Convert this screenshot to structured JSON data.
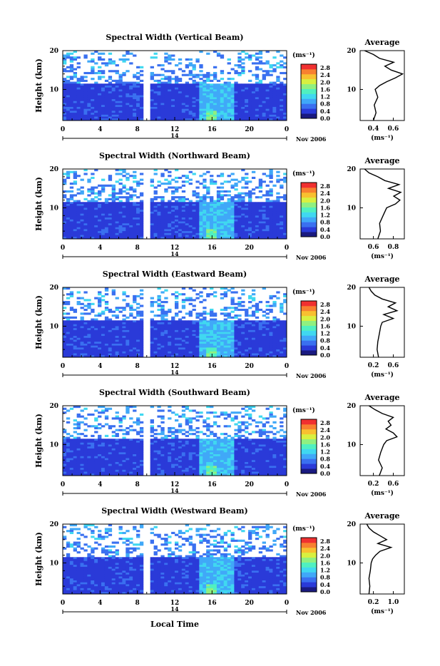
{
  "colors": {
    "scale": [
      "#1a1a80",
      "#2a3ad8",
      "#3a70f0",
      "#40a8f8",
      "#40d8f0",
      "#50f0c0",
      "#90f080",
      "#d8f040",
      "#f8c030",
      "#f88030",
      "#f03030"
    ],
    "gap": "#ffffff",
    "line": "#000000"
  },
  "figure": {
    "local_time_label": "Local Time",
    "day_label": "14",
    "date_label": "Nov 2006",
    "height_label": "Height (km)",
    "unit_label": "(ms⁻¹)",
    "average_title": "Average",
    "avg_unit_label": "(ms⁻¹)"
  },
  "chart_data": [
    {
      "type": "heatmap",
      "title": "Spectral Width (Vertical Beam)",
      "xlabel": "Local Time",
      "ylabel": "Height (km)",
      "xlim": [
        0,
        24
      ],
      "ylim": [
        2,
        20
      ],
      "xticks": [
        "0",
        "4",
        "8",
        "12",
        "16",
        "20",
        "0"
      ],
      "yticks": [
        "20",
        "10"
      ],
      "colorbar": {
        "label": "(ms⁻¹)",
        "range": [
          0,
          3.0
        ],
        "ticks": [
          "2.8",
          "2.4",
          "2.0",
          "1.6",
          "1.2",
          "0.8",
          "0.4",
          "0.0"
        ]
      },
      "data_gap_hours": [
        8.9,
        9.2
      ],
      "average_profile": {
        "title": "Average",
        "xlabel": "(ms⁻¹)",
        "xlim": [
          0.2,
          0.7
        ],
        "xticks": [
          "0.4",
          "0.6"
        ],
        "height_km": [
          2,
          4,
          6,
          8,
          10,
          11,
          12,
          13,
          14,
          15,
          16,
          17,
          18,
          19,
          20
        ],
        "width": [
          0.35,
          0.38,
          0.36,
          0.4,
          0.37,
          0.42,
          0.5,
          0.6,
          0.68,
          0.55,
          0.48,
          0.58,
          0.42,
          0.35,
          0.25
        ]
      }
    },
    {
      "type": "heatmap",
      "title": "Spectral Width (Northward Beam)",
      "xlabel": "Local Time",
      "ylabel": "Height (km)",
      "xlim": [
        0,
        24
      ],
      "ylim": [
        2,
        20
      ],
      "xticks": [
        "0",
        "4",
        "8",
        "12",
        "16",
        "20",
        "0"
      ],
      "yticks": [
        "20",
        "10"
      ],
      "colorbar": {
        "label": "(ms⁻¹)",
        "range": [
          0,
          3.0
        ],
        "ticks": [
          "2.8",
          "2.4",
          "2.0",
          "1.6",
          "1.2",
          "0.8",
          "0.4",
          "0.0"
        ]
      },
      "data_gap_hours": [
        8.9,
        9.2
      ],
      "average_profile": {
        "title": "Average",
        "xlabel": "(ms⁻¹)",
        "xlim": [
          0.4,
          0.9
        ],
        "xticks": [
          "0.6",
          "0.8"
        ],
        "height_km": [
          2,
          4,
          6,
          8,
          10,
          11,
          12,
          13,
          14,
          15,
          16,
          17,
          18,
          19,
          20
        ],
        "width": [
          0.6,
          0.63,
          0.62,
          0.66,
          0.7,
          0.8,
          0.85,
          0.78,
          0.86,
          0.72,
          0.84,
          0.68,
          0.6,
          0.5,
          0.45
        ]
      }
    },
    {
      "type": "heatmap",
      "title": "Spectral Width (Eastward Beam)",
      "xlabel": "Local Time",
      "ylabel": "Height (km)",
      "xlim": [
        0,
        24
      ],
      "ylim": [
        2,
        20
      ],
      "xticks": [
        "0",
        "4",
        "8",
        "12",
        "16",
        "20",
        "0"
      ],
      "yticks": [
        "20",
        "10"
      ],
      "colorbar": {
        "label": "(ms⁻¹)",
        "range": [
          0,
          3.0
        ],
        "ticks": [
          "2.8",
          "2.4",
          "2.0",
          "1.6",
          "1.2",
          "0.8",
          "0.4",
          "0.0"
        ]
      },
      "data_gap_hours": [
        8.9,
        9.2
      ],
      "average_profile": {
        "title": "Average",
        "xlabel": "(ms⁻¹)",
        "xlim": [
          0.1,
          0.7
        ],
        "xticks": [
          "0.2",
          "0.6"
        ],
        "height_km": [
          2,
          4,
          6,
          8,
          10,
          11,
          12,
          13,
          14,
          15,
          16,
          17,
          18,
          19,
          20
        ],
        "width": [
          0.35,
          0.33,
          0.34,
          0.36,
          0.38,
          0.4,
          0.55,
          0.42,
          0.6,
          0.48,
          0.58,
          0.4,
          0.3,
          0.25,
          0.22
        ]
      }
    },
    {
      "type": "heatmap",
      "title": "Spectral Width (Southward Beam)",
      "xlabel": "Local Time",
      "ylabel": "Height (km)",
      "xlim": [
        0,
        24
      ],
      "ylim": [
        2,
        20
      ],
      "xticks": [
        "0",
        "4",
        "8",
        "12",
        "16",
        "20",
        "0"
      ],
      "yticks": [
        "20",
        "10"
      ],
      "colorbar": {
        "label": "(ms⁻¹)",
        "range": [
          0,
          3.0
        ],
        "ticks": [
          "2.8",
          "2.4",
          "2.0",
          "1.6",
          "1.2",
          "0.8",
          "0.4",
          "0.0"
        ]
      },
      "data_gap_hours": [
        8.9,
        9.2
      ],
      "average_profile": {
        "title": "Average",
        "xlabel": "(ms⁻¹)",
        "xlim": [
          0.1,
          0.7
        ],
        "xticks": [
          "0.2",
          "0.6"
        ],
        "height_km": [
          2,
          4,
          6,
          8,
          10,
          11,
          12,
          13,
          14,
          15,
          16,
          17,
          18,
          19,
          20
        ],
        "width": [
          0.36,
          0.4,
          0.35,
          0.38,
          0.42,
          0.46,
          0.6,
          0.55,
          0.45,
          0.52,
          0.48,
          0.55,
          0.4,
          0.3,
          0.22
        ]
      }
    },
    {
      "type": "heatmap",
      "title": "Spectral Width (Westward Beam)",
      "xlabel": "Local Time",
      "ylabel": "Height (km)",
      "xlim": [
        0,
        24
      ],
      "ylim": [
        2,
        20
      ],
      "xticks": [
        "0",
        "4",
        "8",
        "12",
        "16",
        "20",
        "0"
      ],
      "yticks": [
        "20",
        "10"
      ],
      "colorbar": {
        "label": "(ms⁻¹)",
        "range": [
          0,
          3.0
        ],
        "ticks": [
          "2.8",
          "2.4",
          "2.0",
          "1.6",
          "1.2",
          "0.8",
          "0.4",
          "0.0"
        ]
      },
      "data_gap_hours": [
        8.9,
        9.2
      ],
      "average_profile": {
        "title": "Average",
        "xlabel": "(ms⁻¹)",
        "xlim": [
          0.1,
          1.1
        ],
        "xticks": [
          "0.2",
          "1.0"
        ],
        "height_km": [
          2,
          4,
          6,
          8,
          10,
          11,
          12,
          13,
          14,
          15,
          16,
          17,
          18,
          19,
          20
        ],
        "width": [
          0.3,
          0.32,
          0.3,
          0.33,
          0.35,
          0.38,
          0.45,
          0.55,
          0.8,
          0.5,
          0.7,
          0.55,
          0.4,
          0.3,
          0.25
        ]
      }
    }
  ]
}
